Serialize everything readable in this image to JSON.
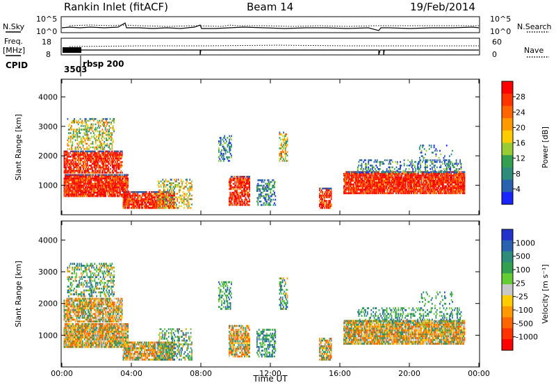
{
  "header": {
    "title": "Rankin Inlet (fitACF)",
    "beam": "Beam 14",
    "date": "19/Feb/2014"
  },
  "noise_panel": {
    "left_label": "N.Sky",
    "right_label": "N.Search",
    "left_ticks": [
      "10^5",
      "10^0"
    ],
    "right_ticks": [
      "10^5",
      "10^0"
    ]
  },
  "freq_panel": {
    "left_label_1": "Freq.",
    "left_label_2": "[MHz]",
    "right_label": "Nave",
    "left_ticks": [
      "18",
      "8"
    ],
    "right_ticks": [
      "60",
      "0"
    ],
    "cpid_label": "CPID",
    "cpid_value": "3503",
    "mode_label": "rbsp 200"
  },
  "chart_data": [
    {
      "type": "heatmap",
      "name": "Power",
      "ylabel": "Slant Range [km]",
      "yticks": [
        "1000",
        "2000",
        "3000",
        "4000"
      ],
      "ylim": [
        0,
        4600
      ],
      "colorbar_label": "Power [dB]",
      "colorbar_ticks": [
        "28",
        "24",
        "20",
        "16",
        "12",
        "8",
        "4"
      ],
      "colorbar_colors": [
        "#ff0000",
        "#ff3300",
        "#ff6600",
        "#ff9900",
        "#ffcc00",
        "#99cc33",
        "#33a050",
        "#2d8c7a",
        "#2a62b0",
        "#1a24ff"
      ]
    },
    {
      "type": "heatmap",
      "name": "Velocity",
      "ylabel": "Slant Range [km]",
      "yticks": [
        "1000",
        "2000",
        "3000",
        "4000"
      ],
      "ylim": [
        0,
        4600
      ],
      "colorbar_label": "Velocity [m s⁻¹]",
      "colorbar_ticks": [
        "1000",
        "500",
        "100",
        "25",
        "-25",
        "-100",
        "-500",
        "-1000"
      ],
      "colorbar_colors": [
        "#2233cc",
        "#2a62b0",
        "#2d8c7a",
        "#33a050",
        "#66cc33",
        "#c8c8c8",
        "#ffcc00",
        "#ff9900",
        "#ff6600",
        "#ff3300",
        "#ff0000"
      ]
    }
  ],
  "time_axis": {
    "label": "Time UT",
    "ticks": [
      "00:00",
      "04:00",
      "08:00",
      "12:00",
      "16:00",
      "20:00",
      "00:00"
    ]
  }
}
